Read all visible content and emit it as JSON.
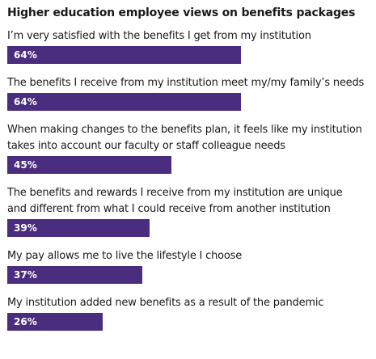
{
  "chart_data": {
    "type": "bar",
    "orientation": "horizontal",
    "title": "Higher education employee views on benefits packages",
    "categories": [
      "I’m very satisfied with the benefits I get from my institution",
      "The benefits I receive from my institution meet my/my family’s needs",
      "When making changes to the benefits plan, it feels like my institution takes into account our faculty or staff colleague needs",
      "The benefits and rewards I receive from my institution are unique and different from what I could receive from another institution",
      "My pay allows me to live the lifestyle I choose",
      "My institution added new benefits as a result of the pandemic"
    ],
    "values": [
      64,
      64,
      45,
      39,
      37,
      26
    ],
    "value_labels": [
      "64%",
      "64%",
      "45%",
      "39%",
      "37%",
      "26%"
    ],
    "unit": "%",
    "xlim": [
      0,
      100
    ],
    "grid": false,
    "legend": "none",
    "colors": {
      "bar": "#4b2d7f",
      "bar_text": "#ffffff",
      "text": "#1a1a1a"
    }
  }
}
